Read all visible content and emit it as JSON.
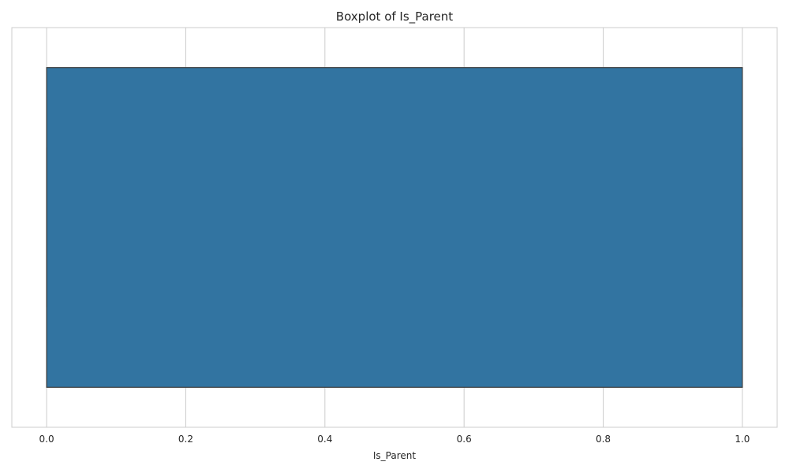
{
  "chart_data": {
    "type": "boxplot",
    "title": "Boxplot of Is_Parent",
    "xlabel": "Is_Parent",
    "ylabel": "",
    "orientation": "horizontal",
    "xlim": [
      -0.05,
      1.05
    ],
    "xticks": [
      0.0,
      0.2,
      0.4,
      0.6,
      0.8,
      1.0
    ],
    "xtick_labels": [
      "0.0",
      "0.2",
      "0.4",
      "0.6",
      "0.8",
      "1.0"
    ],
    "grid": true,
    "box": {
      "min": 0.0,
      "q1": 0.0,
      "median": 0.0,
      "q3": 1.0,
      "max": 1.0
    },
    "colors": {
      "box_fill": "#3274a1",
      "box_edge": "#3d3d3d",
      "grid": "#cccccc",
      "axes_edge": "#cccccc"
    }
  }
}
